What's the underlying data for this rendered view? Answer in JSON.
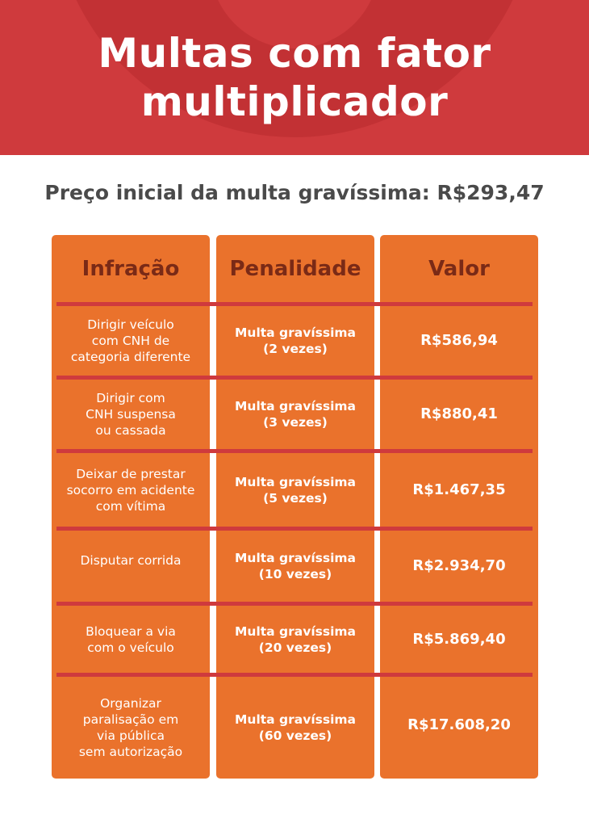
{
  "header": {
    "title_line1": "Multas com fator",
    "title_line2": "multiplicador"
  },
  "subtitle": "Preço inicial da multa gravíssima: R$293,47",
  "table": {
    "columns": [
      "Infração",
      "Penalidade",
      "Valor"
    ],
    "rows": [
      {
        "infracao": "Dirigir veículo\ncom CNH de\ncategoria diferente",
        "penalidade": "Multa gravíssima\n(2 vezes)",
        "valor": "R$586,94"
      },
      {
        "infracao": "Dirigir com\nCNH suspensa\nou cassada",
        "penalidade": "Multa gravíssima\n(3 vezes)",
        "valor": "R$880,41"
      },
      {
        "infracao": "Deixar de prestar\nsocorro em acidente\ncom vítima",
        "penalidade": "Multa gravíssima\n(5 vezes)",
        "valor": "R$1.467,35"
      },
      {
        "infracao": "Disputar corrida",
        "penalidade": "Multa gravíssima\n(10 vezes)",
        "valor": "R$2.934,70"
      },
      {
        "infracao": "Bloquear a via\ncom o veículo",
        "penalidade": "Multa gravíssima\n(20 vezes)",
        "valor": "R$5.869,40"
      },
      {
        "infracao": "Organizar\nparalisação em\nvia pública\nsem autorização",
        "penalidade": "Multa gravíssima\n(60 vezes)",
        "valor": "R$17.608,20"
      }
    ]
  },
  "colors": {
    "header_bg": "#cf3a3d",
    "header_ring": "#c23134",
    "column_bg": "#ea722c",
    "column_header_text": "#7a2a16",
    "separator": "#cf3a3d",
    "subtitle_text": "#4a4a4a"
  }
}
